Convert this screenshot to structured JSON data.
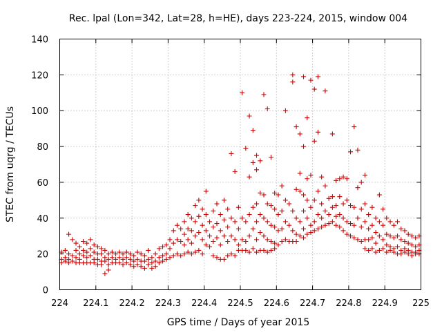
{
  "chart_data": {
    "type": "scatter",
    "title": "Rec. lpal (Lon=342, Lat=28, h=HE), days 223-224, 2015, window 004",
    "xlabel": "GPS time / Days of year 2015",
    "ylabel": "STEC from uqrg / TECUs",
    "xlim": [
      224,
      225
    ],
    "ylim": [
      0,
      140
    ],
    "xticks": [
      "224",
      "224.1",
      "224.2",
      "224.3",
      "224.4",
      "224.5",
      "224.6",
      "224.7",
      "224.8",
      "224.9",
      "225"
    ],
    "yticks": [
      "0",
      "20",
      "40",
      "60",
      "80",
      "100",
      "120",
      "140"
    ],
    "grid": true,
    "marker": "plus",
    "color": "#cc0000",
    "points": [
      [
        224.005,
        21
      ],
      [
        224.005,
        17
      ],
      [
        224.005,
        15
      ],
      [
        224.015,
        22
      ],
      [
        224.015,
        18
      ],
      [
        224.015,
        16
      ],
      [
        224.025,
        31
      ],
      [
        224.025,
        20
      ],
      [
        224.025,
        17
      ],
      [
        224.025,
        15
      ],
      [
        224.035,
        28
      ],
      [
        224.035,
        19
      ],
      [
        224.035,
        16
      ],
      [
        224.045,
        26
      ],
      [
        224.045,
        22
      ],
      [
        224.045,
        18
      ],
      [
        224.045,
        15
      ],
      [
        224.055,
        24
      ],
      [
        224.055,
        20
      ],
      [
        224.055,
        17
      ],
      [
        224.055,
        15
      ],
      [
        224.065,
        27
      ],
      [
        224.065,
        22
      ],
      [
        224.065,
        19
      ],
      [
        224.065,
        15
      ],
      [
        224.075,
        26
      ],
      [
        224.075,
        21
      ],
      [
        224.075,
        18
      ],
      [
        224.075,
        15
      ],
      [
        224.085,
        28
      ],
      [
        224.085,
        23
      ],
      [
        224.085,
        19
      ],
      [
        224.085,
        15
      ],
      [
        224.095,
        25
      ],
      [
        224.095,
        21
      ],
      [
        224.095,
        17
      ],
      [
        224.095,
        15
      ],
      [
        224.105,
        24
      ],
      [
        224.105,
        20
      ],
      [
        224.105,
        17
      ],
      [
        224.105,
        14
      ],
      [
        224.115,
        23
      ],
      [
        224.115,
        20
      ],
      [
        224.115,
        16
      ],
      [
        224.115,
        14
      ],
      [
        224.125,
        22
      ],
      [
        224.125,
        18
      ],
      [
        224.125,
        16
      ],
      [
        224.125,
        9
      ],
      [
        224.135,
        20
      ],
      [
        224.135,
        17
      ],
      [
        224.135,
        14
      ],
      [
        224.135,
        11
      ],
      [
        224.145,
        21
      ],
      [
        224.145,
        18
      ],
      [
        224.145,
        15
      ],
      [
        224.155,
        20
      ],
      [
        224.155,
        17
      ],
      [
        224.155,
        15
      ],
      [
        224.165,
        21
      ],
      [
        224.165,
        18
      ],
      [
        224.165,
        15
      ],
      [
        224.175,
        20
      ],
      [
        224.175,
        17
      ],
      [
        224.175,
        14
      ],
      [
        224.185,
        21
      ],
      [
        224.185,
        18
      ],
      [
        224.185,
        15
      ],
      [
        224.195,
        20
      ],
      [
        224.195,
        17
      ],
      [
        224.195,
        14
      ],
      [
        224.205,
        19
      ],
      [
        224.205,
        16
      ],
      [
        224.205,
        13
      ],
      [
        224.215,
        21
      ],
      [
        224.215,
        17
      ],
      [
        224.215,
        14
      ],
      [
        224.225,
        20
      ],
      [
        224.225,
        16
      ],
      [
        224.225,
        13
      ],
      [
        224.235,
        19
      ],
      [
        224.235,
        16
      ],
      [
        224.235,
        12
      ],
      [
        224.245,
        22
      ],
      [
        224.245,
        17
      ],
      [
        224.245,
        14
      ],
      [
        224.255,
        18
      ],
      [
        224.255,
        15
      ],
      [
        224.255,
        12
      ],
      [
        224.265,
        20
      ],
      [
        224.265,
        16
      ],
      [
        224.265,
        13
      ],
      [
        224.275,
        23
      ],
      [
        224.275,
        18
      ],
      [
        224.275,
        15
      ],
      [
        224.285,
        24
      ],
      [
        224.285,
        19
      ],
      [
        224.285,
        16
      ],
      [
        224.295,
        25
      ],
      [
        224.295,
        20
      ],
      [
        224.295,
        17
      ],
      [
        224.305,
        28
      ],
      [
        224.305,
        23
      ],
      [
        224.305,
        18
      ],
      [
        224.315,
        33
      ],
      [
        224.315,
        26
      ],
      [
        224.315,
        19
      ],
      [
        224.325,
        36
      ],
      [
        224.325,
        28
      ],
      [
        224.325,
        20
      ],
      [
        224.335,
        34
      ],
      [
        224.335,
        27
      ],
      [
        224.335,
        19
      ],
      [
        224.345,
        38
      ],
      [
        224.345,
        31
      ],
      [
        224.345,
        25
      ],
      [
        224.345,
        20
      ],
      [
        224.355,
        42
      ],
      [
        224.355,
        34
      ],
      [
        224.355,
        28
      ],
      [
        224.355,
        21
      ],
      [
        224.365,
        40
      ],
      [
        224.365,
        33
      ],
      [
        224.365,
        26
      ],
      [
        224.365,
        20
      ],
      [
        224.375,
        47
      ],
      [
        224.375,
        38
      ],
      [
        224.375,
        30
      ],
      [
        224.375,
        21
      ],
      [
        224.385,
        50
      ],
      [
        224.385,
        41
      ],
      [
        224.385,
        32
      ],
      [
        224.385,
        22
      ],
      [
        224.395,
        45
      ],
      [
        224.395,
        36
      ],
      [
        224.395,
        28
      ],
      [
        224.395,
        20
      ],
      [
        224.405,
        55
      ],
      [
        224.405,
        42
      ],
      [
        224.405,
        33
      ],
      [
        224.405,
        25
      ],
      [
        224.415,
        38
      ],
      [
        224.415,
        30
      ],
      [
        224.415,
        24
      ],
      [
        224.425,
        44
      ],
      [
        224.425,
        35
      ],
      [
        224.425,
        27
      ],
      [
        224.425,
        19
      ],
      [
        224.435,
        48
      ],
      [
        224.435,
        37
      ],
      [
        224.435,
        29
      ],
      [
        224.435,
        18
      ],
      [
        224.445,
        42
      ],
      [
        224.445,
        33
      ],
      [
        224.445,
        25
      ],
      [
        224.445,
        17
      ],
      [
        224.455,
        50
      ],
      [
        224.455,
        39
      ],
      [
        224.455,
        30
      ],
      [
        224.455,
        17
      ],
      [
        224.465,
        45
      ],
      [
        224.465,
        35
      ],
      [
        224.465,
        27
      ],
      [
        224.465,
        19
      ],
      [
        224.475,
        76
      ],
      [
        224.475,
        40
      ],
      [
        224.475,
        30
      ],
      [
        224.475,
        20
      ],
      [
        224.485,
        66
      ],
      [
        224.485,
        38
      ],
      [
        224.485,
        28
      ],
      [
        224.485,
        19
      ],
      [
        224.495,
        46
      ],
      [
        224.495,
        34
      ],
      [
        224.495,
        25
      ],
      [
        224.495,
        22
      ],
      [
        224.505,
        110
      ],
      [
        224.505,
        40
      ],
      [
        224.505,
        28
      ],
      [
        224.505,
        22
      ],
      [
        224.515,
        79
      ],
      [
        224.515,
        38
      ],
      [
        224.515,
        27
      ],
      [
        224.515,
        22
      ],
      [
        224.525,
        97
      ],
      [
        224.525,
        63
      ],
      [
        224.525,
        42
      ],
      [
        224.525,
        30
      ],
      [
        224.525,
        21
      ],
      [
        224.535,
        89
      ],
      [
        224.535,
        71
      ],
      [
        224.535,
        46
      ],
      [
        224.535,
        34
      ],
      [
        224.535,
        23
      ],
      [
        224.545,
        75
      ],
      [
        224.545,
        67
      ],
      [
        224.545,
        48
      ],
      [
        224.545,
        38
      ],
      [
        224.545,
        28
      ],
      [
        224.545,
        21
      ],
      [
        224.555,
        72
      ],
      [
        224.555,
        54
      ],
      [
        224.555,
        42
      ],
      [
        224.555,
        32
      ],
      [
        224.555,
        22
      ],
      [
        224.565,
        109
      ],
      [
        224.565,
        53
      ],
      [
        224.565,
        40
      ],
      [
        224.565,
        30
      ],
      [
        224.565,
        22
      ],
      [
        224.575,
        101
      ],
      [
        224.575,
        48
      ],
      [
        224.575,
        38
      ],
      [
        224.575,
        28
      ],
      [
        224.575,
        21
      ],
      [
        224.585,
        74
      ],
      [
        224.585,
        47
      ],
      [
        224.585,
        36
      ],
      [
        224.585,
        27
      ],
      [
        224.585,
        22
      ],
      [
        224.595,
        54
      ],
      [
        224.595,
        45
      ],
      [
        224.595,
        35
      ],
      [
        224.595,
        26
      ],
      [
        224.595,
        23
      ],
      [
        224.605,
        53
      ],
      [
        224.605,
        42
      ],
      [
        224.605,
        33
      ],
      [
        224.605,
        25
      ],
      [
        224.615,
        58
      ],
      [
        224.615,
        44
      ],
      [
        224.615,
        34
      ],
      [
        224.615,
        27
      ],
      [
        224.625,
        100
      ],
      [
        224.625,
        50
      ],
      [
        224.625,
        38
      ],
      [
        224.625,
        28
      ],
      [
        224.635,
        48
      ],
      [
        224.635,
        36
      ],
      [
        224.635,
        27
      ],
      [
        224.645,
        120
      ],
      [
        224.645,
        116
      ],
      [
        224.645,
        44
      ],
      [
        224.645,
        33
      ],
      [
        224.645,
        27
      ],
      [
        224.655,
        91
      ],
      [
        224.655,
        56
      ],
      [
        224.655,
        40
      ],
      [
        224.655,
        31
      ],
      [
        224.655,
        27
      ],
      [
        224.665,
        87
      ],
      [
        224.665,
        65
      ],
      [
        224.665,
        55
      ],
      [
        224.665,
        38
      ],
      [
        224.665,
        30
      ],
      [
        224.675,
        119
      ],
      [
        224.675,
        80
      ],
      [
        224.675,
        53
      ],
      [
        224.675,
        44
      ],
      [
        224.675,
        34
      ],
      [
        224.675,
        29
      ],
      [
        224.685,
        96
      ],
      [
        224.685,
        62
      ],
      [
        224.685,
        50
      ],
      [
        224.685,
        40
      ],
      [
        224.685,
        31
      ],
      [
        224.695,
        117
      ],
      [
        224.695,
        64
      ],
      [
        224.695,
        46
      ],
      [
        224.695,
        36
      ],
      [
        224.695,
        32
      ],
      [
        224.705,
        112
      ],
      [
        224.705,
        83
      ],
      [
        224.705,
        50
      ],
      [
        224.705,
        38
      ],
      [
        224.705,
        33
      ],
      [
        224.715,
        119
      ],
      [
        224.715,
        88
      ],
      [
        224.715,
        55
      ],
      [
        224.715,
        42
      ],
      [
        224.715,
        34
      ],
      [
        224.725,
        63
      ],
      [
        224.725,
        48
      ],
      [
        224.725,
        40
      ],
      [
        224.725,
        35
      ],
      [
        224.735,
        111
      ],
      [
        224.735,
        58
      ],
      [
        224.735,
        44
      ],
      [
        224.735,
        36
      ],
      [
        224.745,
        51
      ],
      [
        224.745,
        42
      ],
      [
        224.745,
        37
      ],
      [
        224.755,
        87
      ],
      [
        224.755,
        52
      ],
      [
        224.755,
        46
      ],
      [
        224.755,
        38
      ],
      [
        224.765,
        61
      ],
      [
        224.765,
        47
      ],
      [
        224.765,
        41
      ],
      [
        224.765,
        36
      ],
      [
        224.775,
        62
      ],
      [
        224.775,
        52
      ],
      [
        224.775,
        42
      ],
      [
        224.775,
        35
      ],
      [
        224.785,
        63
      ],
      [
        224.785,
        48
      ],
      [
        224.785,
        40
      ],
      [
        224.785,
        33
      ],
      [
        224.795,
        62
      ],
      [
        224.795,
        50
      ],
      [
        224.795,
        38
      ],
      [
        224.795,
        31
      ],
      [
        224.805,
        77
      ],
      [
        224.805,
        47
      ],
      [
        224.805,
        37
      ],
      [
        224.805,
        30
      ],
      [
        224.815,
        91
      ],
      [
        224.815,
        46
      ],
      [
        224.815,
        36
      ],
      [
        224.815,
        29
      ],
      [
        224.825,
        78
      ],
      [
        224.825,
        57
      ],
      [
        224.825,
        40
      ],
      [
        224.825,
        28
      ],
      [
        224.835,
        60
      ],
      [
        224.835,
        45
      ],
      [
        224.835,
        35
      ],
      [
        224.835,
        27
      ],
      [
        224.845,
        64
      ],
      [
        224.845,
        48
      ],
      [
        224.845,
        38
      ],
      [
        224.845,
        28
      ],
      [
        224.845,
        23
      ],
      [
        224.855,
        42
      ],
      [
        224.855,
        34
      ],
      [
        224.855,
        28
      ],
      [
        224.855,
        22
      ],
      [
        224.865,
        46
      ],
      [
        224.865,
        36
      ],
      [
        224.865,
        29
      ],
      [
        224.865,
        23
      ],
      [
        224.875,
        40
      ],
      [
        224.875,
        32
      ],
      [
        224.875,
        26
      ],
      [
        224.875,
        21
      ],
      [
        224.885,
        53
      ],
      [
        224.885,
        38
      ],
      [
        224.885,
        30
      ],
      [
        224.885,
        22
      ],
      [
        224.895,
        45
      ],
      [
        224.895,
        36
      ],
      [
        224.895,
        28
      ],
      [
        224.895,
        23
      ],
      [
        224.905,
        40
      ],
      [
        224.905,
        31
      ],
      [
        224.905,
        25
      ],
      [
        224.905,
        21
      ],
      [
        224.915,
        38
      ],
      [
        224.915,
        30
      ],
      [
        224.915,
        24
      ],
      [
        224.915,
        22
      ],
      [
        224.925,
        36
      ],
      [
        224.925,
        29
      ],
      [
        224.925,
        23
      ],
      [
        224.925,
        21
      ],
      [
        224.935,
        38
      ],
      [
        224.935,
        30
      ],
      [
        224.935,
        24
      ],
      [
        224.935,
        20
      ],
      [
        224.945,
        34
      ],
      [
        224.945,
        28
      ],
      [
        224.945,
        22
      ],
      [
        224.945,
        20
      ],
      [
        224.955,
        33
      ],
      [
        224.955,
        27
      ],
      [
        224.955,
        23
      ],
      [
        224.955,
        21
      ],
      [
        224.965,
        31
      ],
      [
        224.965,
        26
      ],
      [
        224.965,
        22
      ],
      [
        224.965,
        20
      ],
      [
        224.975,
        30
      ],
      [
        224.975,
        25
      ],
      [
        224.975,
        21
      ],
      [
        224.975,
        19
      ],
      [
        224.985,
        29
      ],
      [
        224.985,
        24
      ],
      [
        224.985,
        21
      ],
      [
        224.985,
        20
      ],
      [
        224.995,
        30
      ],
      [
        224.995,
        25
      ],
      [
        224.995,
        22
      ],
      [
        224.995,
        20
      ]
    ]
  }
}
